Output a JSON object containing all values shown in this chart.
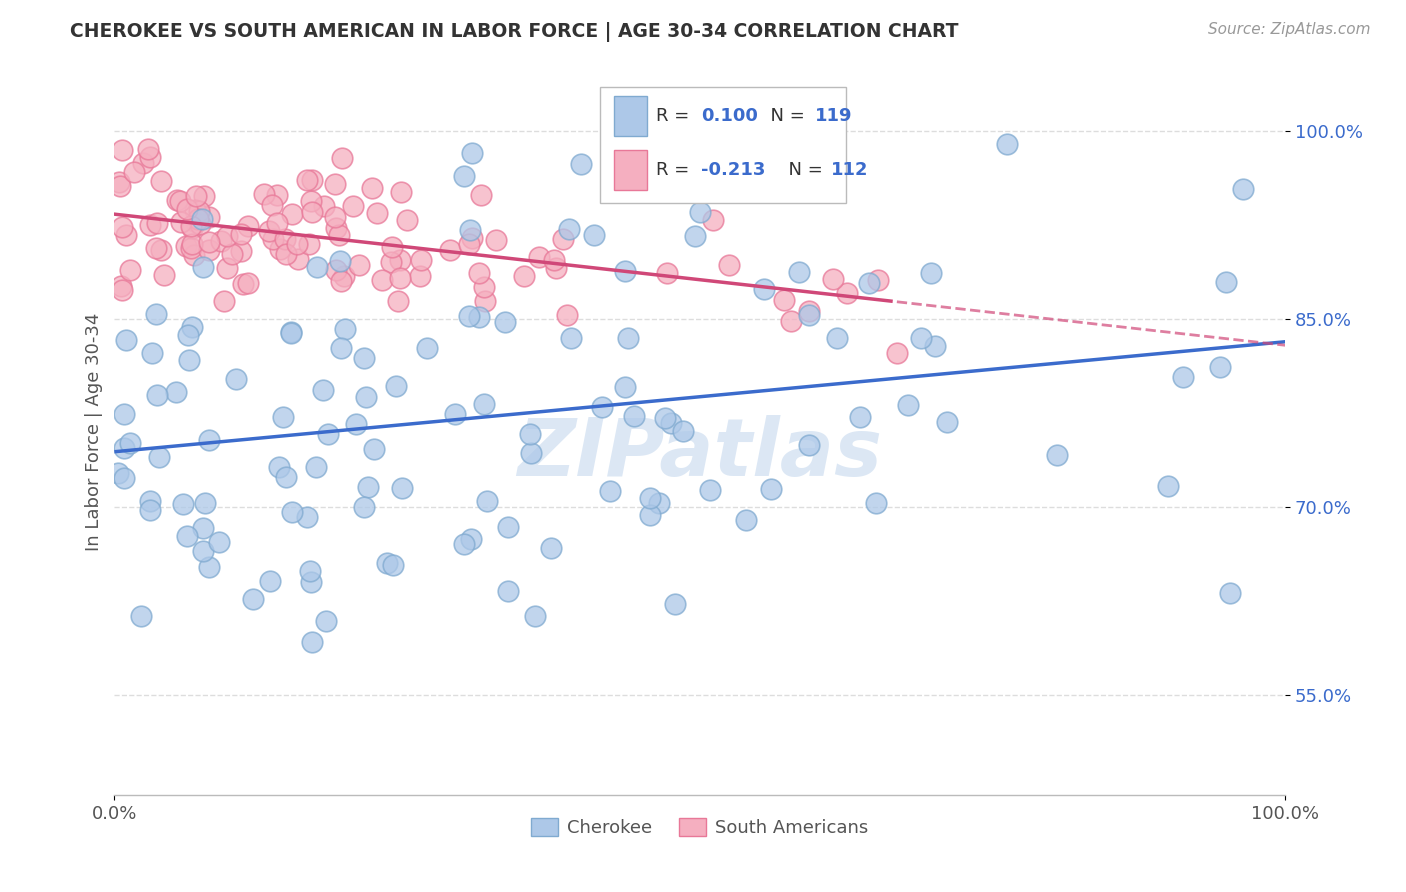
{
  "title": "CHEROKEE VS SOUTH AMERICAN IN LABOR FORCE | AGE 30-34 CORRELATION CHART",
  "source": "Source: ZipAtlas.com",
  "ylabel": "In Labor Force | Age 30-34",
  "xlim": [
    0.0,
    1.0
  ],
  "ylim": [
    0.47,
    1.05
  ],
  "xtick_positions": [
    0.0,
    1.0
  ],
  "xtick_labels": [
    "0.0%",
    "100.0%"
  ],
  "ytick_values": [
    0.55,
    0.7,
    0.85,
    1.0
  ],
  "ytick_labels": [
    "55.0%",
    "70.0%",
    "85.0%",
    "100.0%"
  ],
  "watermark_text": "ZIPatlas",
  "cherokee_color": "#adc8e8",
  "cherokee_edge": "#80aad0",
  "south_american_color": "#f5afc0",
  "south_american_edge": "#e87898",
  "regression_cherokee_color": "#3b6bcc",
  "regression_south_american_color": "#d04878",
  "background_color": "#ffffff",
  "grid_color": "#dddddd",
  "title_color": "#333333",
  "legend_R_value_color": "#3b6bcc",
  "legend_N_value_color": "#3b6bcc",
  "legend_text_color": "#333333",
  "ytick_color": "#3b6bcc",
  "xtick_color": "#555555",
  "ylabel_color": "#555555"
}
